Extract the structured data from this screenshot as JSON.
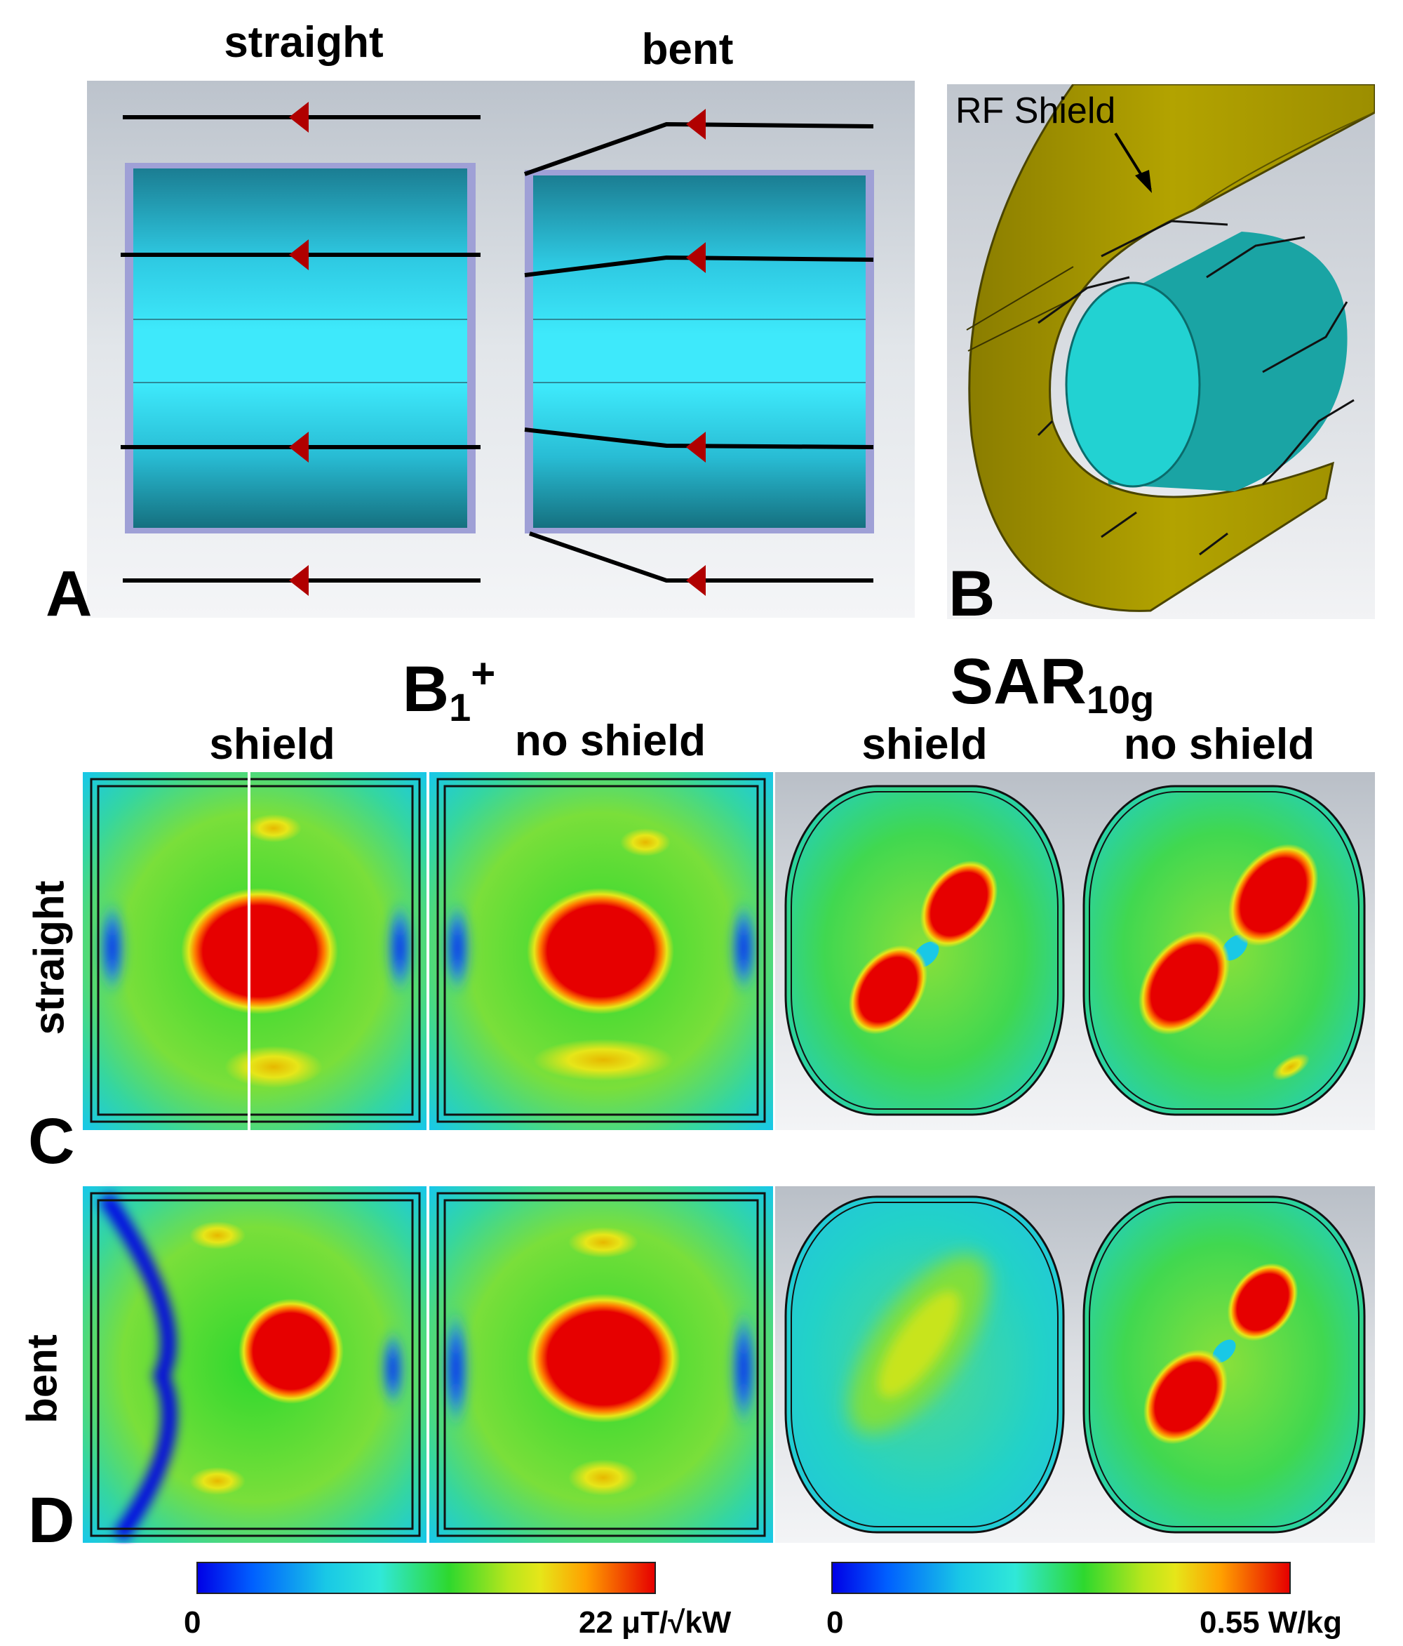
{
  "panel_a": {
    "label": "A",
    "col_straight": "straight",
    "col_bent": "bent"
  },
  "panel_b": {
    "label": "B",
    "annotation": "RF Shield"
  },
  "maps": {
    "b1_title_main": "B",
    "b1_title_sub": "1",
    "b1_title_sup": "+",
    "sar_title_main": "SAR",
    "sar_title_sub": "10g",
    "col_shield_1": "shield",
    "col_noshield_1": "no shield",
    "col_shield_2": "shield",
    "col_noshield_2": "no shield",
    "row_c_label": "C",
    "row_c_name": "straight",
    "row_d_label": "D",
    "row_d_name": "bent"
  },
  "colorbars": {
    "b1": {
      "min": "0",
      "max": "22 μT/√kW"
    },
    "sar": {
      "min": "0",
      "max": "0.55 W/kg"
    }
  },
  "colors": {
    "jet_blue": "#0000e6",
    "jet_cyan": "#19e6e6",
    "jet_green": "#2ed82e",
    "jet_yellow": "#e6e619",
    "jet_red": "#e60000",
    "shield_olive": "#a89a00",
    "phantom_cyan": "#20c8c8"
  }
}
